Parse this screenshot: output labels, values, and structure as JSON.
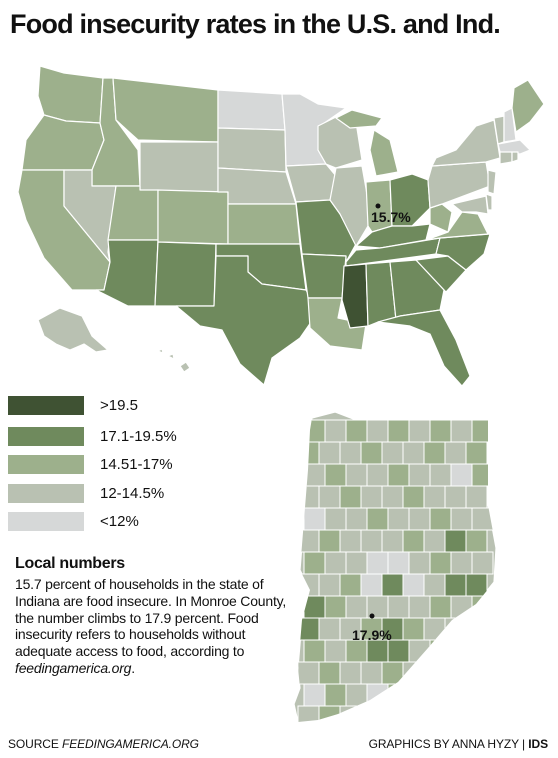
{
  "title": "Food insecurity rates in the U.S. and Ind.",
  "colors": {
    "over_19_5": "#3f5233",
    "r17_1_19_5": "#6f8a5d",
    "r14_51_17": "#9db08c",
    "r12_14_5": "#b9c1b2",
    "under_12": "#d6d8d8",
    "border": "#ffffff",
    "text": "#111111"
  },
  "legend": [
    {
      "label": ">19.5",
      "color": "#3f5233"
    },
    {
      "label": "17.1-19.5%",
      "color": "#6f8a5d"
    },
    {
      "label": "14.51-17%",
      "color": "#9db08c"
    },
    {
      "label": "12-14.5%",
      "color": "#b9c1b2"
    },
    {
      "label": "<12%",
      "color": "#d6d8d8"
    }
  ],
  "us_map": {
    "indiana_rate": "15.7%"
  },
  "indiana_map": {
    "monroe_rate": "17.9%"
  },
  "local": {
    "heading": "Local numbers",
    "text": "15.7 percent of households in the state of Indiana are food insecure. In Monroe County, the number climbs to 17.9 percent. Food insecurity refers to households without adequate access to food, according to",
    "site": "feedingamerica.org",
    "end": "."
  },
  "footer": {
    "source_label": "SOURCE",
    "source_site": "FEEDINGAMERICA.ORG",
    "credit": "GRAPHICS BY ANNA HYZY",
    "divider": "|",
    "publisher": "IDS"
  }
}
